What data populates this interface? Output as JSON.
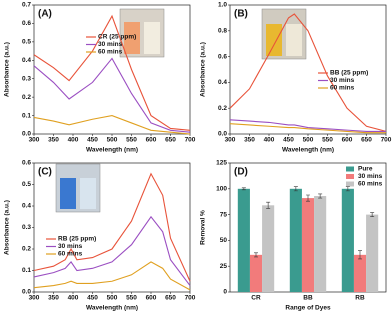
{
  "chart_data": [
    {
      "type": "line",
      "label": "(A)",
      "x_label": "Wavelength (nm)",
      "y_label": "Absorbance (a.u.)",
      "x": [
        300,
        350,
        390,
        450,
        500,
        550,
        600,
        650,
        700
      ],
      "series": [
        {
          "name": "CR (25 ppm)",
          "color": "#e8533a",
          "values": [
            0.43,
            0.36,
            0.29,
            0.45,
            0.64,
            0.35,
            0.1,
            0.03,
            0.02
          ]
        },
        {
          "name": "30 mins",
          "color": "#9b4fc2",
          "values": [
            0.37,
            0.28,
            0.19,
            0.28,
            0.41,
            0.22,
            0.06,
            0.02,
            0.01
          ]
        },
        {
          "name": "60 mins",
          "color": "#e0a020",
          "values": [
            0.09,
            0.07,
            0.05,
            0.08,
            0.1,
            0.06,
            0.02,
            0.01,
            0.0
          ]
        }
      ],
      "xlim": [
        300,
        700
      ],
      "xticks": [
        300,
        350,
        400,
        450,
        500,
        550,
        600,
        650,
        700
      ],
      "ylim": [
        0,
        0.7
      ],
      "yticks": [
        {
          "value": 0,
          "label": "0.0"
        },
        0.1,
        0.2,
        0.3,
        0.4,
        0.5,
        0.6,
        0.7
      ],
      "legend": "center"
    },
    {
      "type": "line",
      "label": "(B)",
      "x_label": "Wavelength (nm)",
      "y_label": "Absorbance (a.u.)",
      "x": [
        300,
        350,
        400,
        450,
        465,
        500,
        550,
        600,
        650,
        700
      ],
      "series": [
        {
          "name": "BB (25 ppm)",
          "color": "#e8533a",
          "values": [
            0.2,
            0.35,
            0.62,
            0.9,
            0.93,
            0.8,
            0.45,
            0.2,
            0.06,
            0.02
          ]
        },
        {
          "name": "30 mins",
          "color": "#9b4fc2",
          "values": [
            0.11,
            0.1,
            0.09,
            0.07,
            0.07,
            0.05,
            0.04,
            0.03,
            0.02,
            0.02
          ]
        },
        {
          "name": "60 mins",
          "color": "#e0a020",
          "values": [
            0.08,
            0.07,
            0.06,
            0.05,
            0.05,
            0.04,
            0.03,
            0.02,
            0.01,
            0.01
          ]
        }
      ],
      "xlim": [
        300,
        700
      ],
      "xticks": [
        300,
        350,
        400,
        450,
        500,
        550,
        600,
        650,
        700
      ],
      "ylim": [
        0,
        1
      ],
      "yticks": [
        {
          "value": 0,
          "label": "0.0"
        },
        0.2,
        0.4,
        0.6,
        0.8,
        {
          "value": 1,
          "label": "1.0"
        }
      ],
      "legend": "center-right"
    },
    {
      "type": "line",
      "label": "(C)",
      "x_label": "Wavelength (nm)",
      "y_label": "Absorbance (a.u.)",
      "x": [
        300,
        350,
        380,
        395,
        410,
        450,
        500,
        550,
        600,
        630,
        650,
        700
      ],
      "series": [
        {
          "name": "RB (25 ppm)",
          "color": "#e8533a",
          "values": [
            0.1,
            0.12,
            0.15,
            0.2,
            0.15,
            0.16,
            0.2,
            0.33,
            0.55,
            0.45,
            0.25,
            0.05
          ]
        },
        {
          "name": "30 mins",
          "color": "#9b4fc2",
          "values": [
            0.07,
            0.09,
            0.11,
            0.14,
            0.1,
            0.11,
            0.14,
            0.22,
            0.35,
            0.28,
            0.15,
            0.03
          ]
        },
        {
          "name": "60 mins",
          "color": "#e0a020",
          "values": [
            0.02,
            0.03,
            0.04,
            0.05,
            0.04,
            0.04,
            0.05,
            0.08,
            0.14,
            0.11,
            0.06,
            0.01
          ]
        }
      ],
      "xlim": [
        300,
        700
      ],
      "xticks": [
        300,
        350,
        400,
        450,
        500,
        550,
        600,
        650,
        700
      ],
      "ylim": [
        0,
        0.6
      ],
      "yticks": [
        {
          "value": 0,
          "label": "0.0"
        },
        0.1,
        0.2,
        0.3,
        0.4,
        0.5,
        0.6
      ],
      "legend": "center-left"
    },
    {
      "type": "bar",
      "label": "(D)",
      "x_label": "Range of Dyes",
      "y_label": "Removal %",
      "categories": [
        "CR",
        "BB",
        "RB"
      ],
      "series": [
        {
          "name": "Pure",
          "color": "#3a9b8f",
          "values": [
            100,
            100,
            100
          ],
          "errors": [
            1,
            2,
            2
          ]
        },
        {
          "name": "30 mins",
          "color": "#f27b7b",
          "values": [
            36,
            91,
            36
          ],
          "errors": [
            2,
            3,
            4
          ]
        },
        {
          "name": "60 mins",
          "color": "#c4c4c4",
          "values": [
            84,
            93,
            75
          ],
          "errors": [
            3,
            2,
            2
          ]
        }
      ],
      "ylim": [
        0,
        125
      ],
      "yticks": [
        0,
        25,
        50,
        75,
        100,
        125
      ],
      "legend": "upper-right"
    }
  ]
}
